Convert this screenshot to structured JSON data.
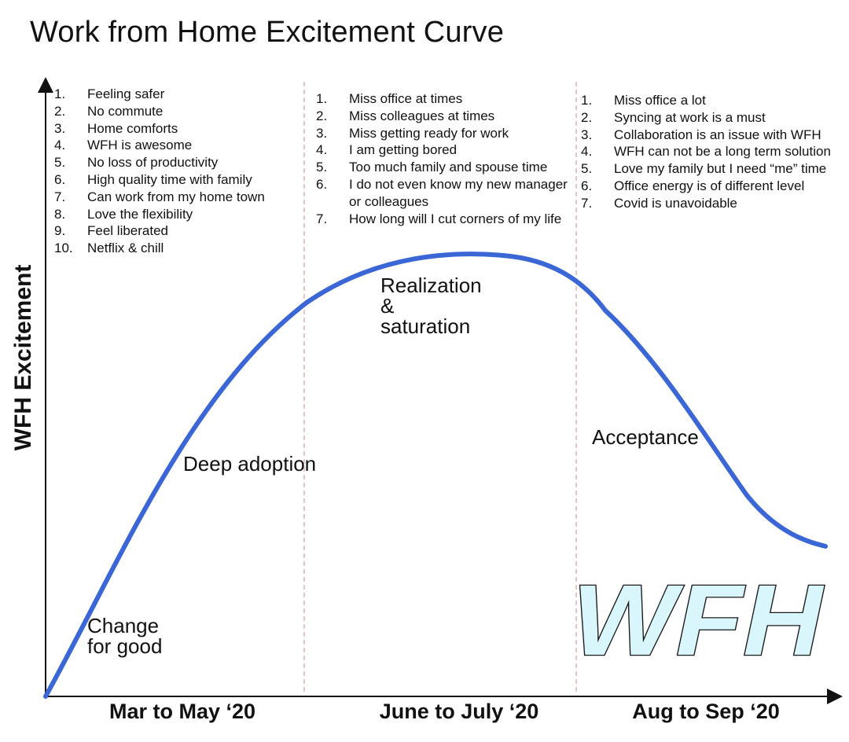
{
  "title": "Work from Home Excitement Curve",
  "y_axis_label": "WFH Excitement",
  "periods": [
    "Mar to May ‘20",
    "June to July ‘20",
    "Aug to Sep ‘20"
  ],
  "phase_lists": [
    {
      "items": [
        {
          "num": "1.",
          "text": "Feeling safer"
        },
        {
          "num": "2.",
          "text": "No commute"
        },
        {
          "num": "3.",
          "text": "Home comforts"
        },
        {
          "num": "4.",
          "text": "WFH is awesome"
        },
        {
          "num": "5.",
          "text": "No loss of productivity"
        },
        {
          "num": "6.",
          "text": "High quality time with family"
        },
        {
          "num": "7.",
          "text": "Can work from my home town"
        },
        {
          "num": "8.",
          "text": "Love the flexibility"
        },
        {
          "num": "9.",
          "text": "Feel liberated"
        },
        {
          "num": "10.",
          "text": "Netflix & chill"
        }
      ]
    },
    {
      "items": [
        {
          "num": "1.",
          "text": "Miss office at times"
        },
        {
          "num": "2.",
          "text": "Miss colleagues at times"
        },
        {
          "num": "3.",
          "text": "Miss getting ready for work"
        },
        {
          "num": "4.",
          "text": "I am getting  bored"
        },
        {
          "num": "5.",
          "text": "Too much family and spouse time"
        },
        {
          "num": "6.",
          "text": "I do not even know my new manager or colleagues"
        },
        {
          "num": "7.",
          "text": "How long will I cut corners of my life"
        }
      ]
    },
    {
      "items": [
        {
          "num": "1.",
          "text": "Miss office a lot"
        },
        {
          "num": "2.",
          "text": "Syncing at work is a must"
        },
        {
          "num": "3.",
          "text": "Collaboration is an issue with WFH"
        },
        {
          "num": "4.",
          "text": "WFH can not be a  long term solution"
        },
        {
          "num": "5.",
          "text": "Love  my family but I  need “me” time"
        },
        {
          "num": "6.",
          "text": "Office energy is of different level"
        },
        {
          "num": "7.",
          "text": "Covid is unavoidable"
        }
      ]
    }
  ],
  "stages": {
    "change": "Change\nfor good",
    "adoption": "Deep adoption",
    "realization": "Realization\n&\nsaturation",
    "acceptance": "Acceptance"
  },
  "logo_text": "WFH",
  "colors": {
    "curve": "#3a66d6",
    "axis": "#111111",
    "divider": "#d9a0a0",
    "logo_fill": "#d8f6fb",
    "logo_stroke": "#1a1a1a"
  }
}
